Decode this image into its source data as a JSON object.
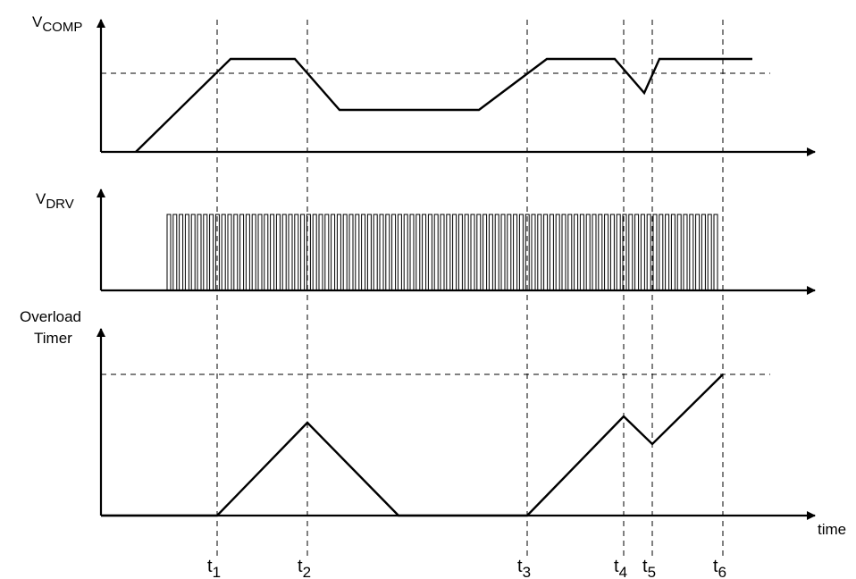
{
  "signals": {
    "vcomp": {
      "base": "V",
      "sub": "COMP"
    },
    "vdrv": {
      "base": "V",
      "sub": "DRV"
    },
    "timer": {
      "line1": "Overload",
      "line2": "Timer"
    }
  },
  "axis": {
    "xlabel": "time"
  },
  "time_markers": [
    {
      "base": "t",
      "sub": "1"
    },
    {
      "base": "t",
      "sub": "2"
    },
    {
      "base": "t",
      "sub": "3"
    },
    {
      "base": "t",
      "sub": "4"
    },
    {
      "base": "t",
      "sub": "5"
    },
    {
      "base": "t",
      "sub": "6"
    }
  ]
}
